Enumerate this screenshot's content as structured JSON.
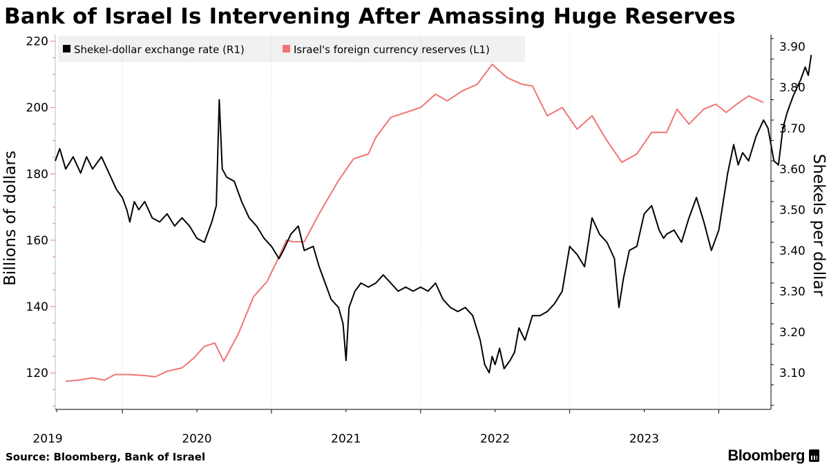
{
  "title": "Bank of Israel Is Intervening After Amassing Huge Reserves",
  "source": "Source:  Bloomberg, Bank of Israel",
  "brand": "Bloomberg",
  "chart_data": {
    "type": "line",
    "legend": {
      "placement": "top-left",
      "entries": [
        {
          "label": "Shekel-dollar exchange rate (R1)",
          "color": "#000000"
        },
        {
          "label": "Israel's foreign currency reserves (L1)",
          "color": "#f07474"
        }
      ]
    },
    "x_axis": {
      "range": [
        2018.55,
        2023.35
      ],
      "ticks": [
        2019,
        2020,
        2021,
        2022,
        2023
      ],
      "tick_labels": [
        "2019",
        "2020",
        "2021",
        "2022",
        "2023"
      ]
    },
    "y_left": {
      "label": "Billions of dollars",
      "range": [
        109,
        222
      ],
      "ticks": [
        120,
        140,
        160,
        180,
        200,
        220
      ],
      "tick_labels": [
        "120",
        "140",
        "160",
        "180",
        "200",
        "220"
      ]
    },
    "y_right": {
      "label": "Shekels per dollar",
      "range": [
        3.01,
        3.93
      ],
      "ticks": [
        3.1,
        3.2,
        3.3,
        3.4,
        3.5,
        3.6,
        3.7,
        3.8,
        3.9
      ],
      "tick_labels": [
        "3.10",
        "3.20",
        "3.30",
        "3.40",
        "3.50",
        "3.60",
        "3.70",
        "3.80",
        "3.90"
      ]
    },
    "grid": {
      "vertical": true,
      "horizontal": false
    },
    "series": [
      {
        "name": "Shekel-dollar exchange rate (R1)",
        "axis": "right",
        "color": "#000000",
        "points": [
          [
            2018.55,
            3.62
          ],
          [
            2018.58,
            3.65
          ],
          [
            2018.62,
            3.6
          ],
          [
            2018.67,
            3.63
          ],
          [
            2018.72,
            3.59
          ],
          [
            2018.76,
            3.63
          ],
          [
            2018.8,
            3.6
          ],
          [
            2018.86,
            3.63
          ],
          [
            2018.91,
            3.59
          ],
          [
            2018.96,
            3.55
          ],
          [
            2019.0,
            3.53
          ],
          [
            2019.03,
            3.5
          ],
          [
            2019.05,
            3.47
          ],
          [
            2019.08,
            3.52
          ],
          [
            2019.11,
            3.5
          ],
          [
            2019.15,
            3.52
          ],
          [
            2019.2,
            3.48
          ],
          [
            2019.25,
            3.47
          ],
          [
            2019.3,
            3.49
          ],
          [
            2019.35,
            3.46
          ],
          [
            2019.4,
            3.48
          ],
          [
            2019.45,
            3.46
          ],
          [
            2019.5,
            3.43
          ],
          [
            2019.55,
            3.42
          ],
          [
            2019.6,
            3.47
          ],
          [
            2019.63,
            3.51
          ],
          [
            2019.65,
            3.77
          ],
          [
            2019.67,
            3.6
          ],
          [
            2019.7,
            3.58
          ],
          [
            2019.75,
            3.57
          ],
          [
            2019.8,
            3.52
          ],
          [
            2019.85,
            3.48
          ],
          [
            2019.9,
            3.46
          ],
          [
            2019.95,
            3.43
          ],
          [
            2020.0,
            3.41
          ],
          [
            2020.05,
            3.38
          ],
          [
            2020.08,
            3.4
          ],
          [
            2020.13,
            3.44
          ],
          [
            2020.18,
            3.46
          ],
          [
            2020.22,
            3.4
          ],
          [
            2020.28,
            3.41
          ],
          [
            2020.32,
            3.36
          ],
          [
            2020.36,
            3.32
          ],
          [
            2020.4,
            3.28
          ],
          [
            2020.45,
            3.26
          ],
          [
            2020.48,
            3.22
          ],
          [
            2020.5,
            3.13
          ],
          [
            2020.52,
            3.26
          ],
          [
            2020.56,
            3.3
          ],
          [
            2020.6,
            3.32
          ],
          [
            2020.65,
            3.31
          ],
          [
            2020.7,
            3.32
          ],
          [
            2020.75,
            3.34
          ],
          [
            2020.8,
            3.32
          ],
          [
            2020.85,
            3.3
          ],
          [
            2020.9,
            3.31
          ],
          [
            2020.95,
            3.3
          ],
          [
            2021.0,
            3.31
          ],
          [
            2021.05,
            3.3
          ],
          [
            2021.1,
            3.32
          ],
          [
            2021.15,
            3.28
          ],
          [
            2021.2,
            3.26
          ],
          [
            2021.25,
            3.25
          ],
          [
            2021.3,
            3.26
          ],
          [
            2021.35,
            3.24
          ],
          [
            2021.4,
            3.18
          ],
          [
            2021.43,
            3.12
          ],
          [
            2021.46,
            3.1
          ],
          [
            2021.48,
            3.14
          ],
          [
            2021.5,
            3.12
          ],
          [
            2021.53,
            3.16
          ],
          [
            2021.56,
            3.11
          ],
          [
            2021.6,
            3.13
          ],
          [
            2021.63,
            3.15
          ],
          [
            2021.66,
            3.21
          ],
          [
            2021.7,
            3.18
          ],
          [
            2021.75,
            3.24
          ],
          [
            2021.8,
            3.24
          ],
          [
            2021.85,
            3.25
          ],
          [
            2021.9,
            3.27
          ],
          [
            2021.95,
            3.3
          ],
          [
            2022.0,
            3.41
          ],
          [
            2022.05,
            3.39
          ],
          [
            2022.1,
            3.36
          ],
          [
            2022.15,
            3.48
          ],
          [
            2022.2,
            3.44
          ],
          [
            2022.25,
            3.42
          ],
          [
            2022.3,
            3.38
          ],
          [
            2022.33,
            3.26
          ],
          [
            2022.36,
            3.33
          ],
          [
            2022.4,
            3.4
          ],
          [
            2022.45,
            3.41
          ],
          [
            2022.5,
            3.49
          ],
          [
            2022.55,
            3.51
          ],
          [
            2022.6,
            3.45
          ],
          [
            2022.63,
            3.43
          ],
          [
            2022.65,
            3.44
          ],
          [
            2022.7,
            3.45
          ],
          [
            2022.75,
            3.42
          ],
          [
            2022.8,
            3.48
          ],
          [
            2022.85,
            3.53
          ],
          [
            2022.9,
            3.47
          ],
          [
            2022.95,
            3.4
          ],
          [
            2023.0,
            3.45
          ],
          [
            2023.03,
            3.52
          ],
          [
            2023.06,
            3.59
          ],
          [
            2023.1,
            3.66
          ],
          [
            2023.13,
            3.61
          ],
          [
            2023.16,
            3.64
          ],
          [
            2023.2,
            3.62
          ],
          [
            2023.25,
            3.68
          ],
          [
            2023.3,
            3.72
          ],
          [
            2023.33,
            3.7
          ],
          [
            2023.37,
            3.62
          ],
          [
            2023.4,
            3.61
          ],
          [
            2023.43,
            3.7
          ],
          [
            2023.46,
            3.74
          ],
          [
            2023.5,
            3.78
          ],
          [
            2023.55,
            3.82
          ],
          [
            2023.58,
            3.85
          ],
          [
            2023.6,
            3.83
          ],
          [
            2023.62,
            3.88
          ]
        ]
      },
      {
        "name": "Israel's foreign currency reserves (L1)",
        "axis": "left",
        "color": "#f07474",
        "points": [
          [
            2018.62,
            117.5
          ],
          [
            2018.7,
            117.8
          ],
          [
            2018.8,
            118.5
          ],
          [
            2018.88,
            117.8
          ],
          [
            2018.95,
            119.5
          ],
          [
            2019.05,
            119.5
          ],
          [
            2019.15,
            119.2
          ],
          [
            2019.22,
            118.8
          ],
          [
            2019.3,
            120.5
          ],
          [
            2019.4,
            121.5
          ],
          [
            2019.48,
            124.5
          ],
          [
            2019.55,
            128
          ],
          [
            2019.62,
            129
          ],
          [
            2019.68,
            123.5
          ],
          [
            2019.78,
            132
          ],
          [
            2019.88,
            143
          ],
          [
            2019.97,
            147.5
          ],
          [
            2020.05,
            155
          ],
          [
            2020.1,
            160
          ],
          [
            2020.15,
            159.5
          ],
          [
            2020.22,
            159.5
          ],
          [
            2020.32,
            168
          ],
          [
            2020.45,
            178
          ],
          [
            2020.55,
            184.5
          ],
          [
            2020.65,
            186
          ],
          [
            2020.7,
            191
          ],
          [
            2020.8,
            197
          ],
          [
            2020.9,
            198.5
          ],
          [
            2021.0,
            200
          ],
          [
            2021.1,
            204
          ],
          [
            2021.18,
            202
          ],
          [
            2021.28,
            205
          ],
          [
            2021.38,
            207
          ],
          [
            2021.48,
            213
          ],
          [
            2021.58,
            209
          ],
          [
            2021.68,
            207
          ],
          [
            2021.75,
            206.5
          ],
          [
            2021.85,
            197.5
          ],
          [
            2021.95,
            200
          ],
          [
            2022.05,
            193.5
          ],
          [
            2022.15,
            197.5
          ],
          [
            2022.25,
            190
          ],
          [
            2022.35,
            183.5
          ],
          [
            2022.45,
            186
          ],
          [
            2022.55,
            192.5
          ],
          [
            2022.65,
            192.5
          ],
          [
            2022.72,
            199.5
          ],
          [
            2022.8,
            195
          ],
          [
            2022.9,
            199.5
          ],
          [
            2022.98,
            201
          ],
          [
            2023.05,
            198.5
          ],
          [
            2023.12,
            201
          ],
          [
            2023.2,
            203.5
          ],
          [
            2023.3,
            201.5
          ]
        ]
      }
    ]
  }
}
